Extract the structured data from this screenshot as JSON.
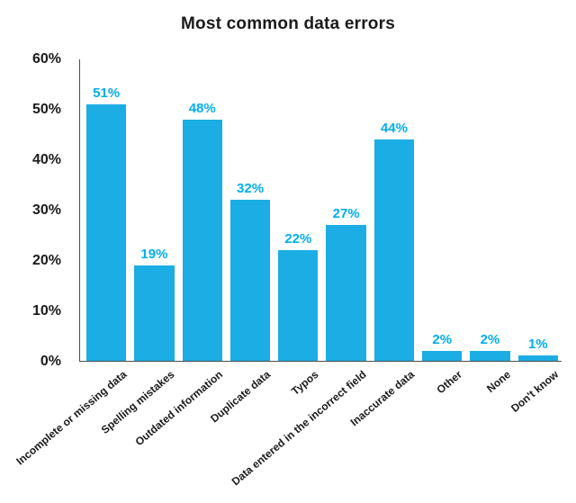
{
  "chart_data": {
    "type": "bar",
    "title": "Most common data errors",
    "categories": [
      "Incomplete or missing data",
      "Spelling mistakes",
      "Outdated information",
      "Duplicate data",
      "Typos",
      "Data entered in the incorrect field",
      "Inaccurate data",
      "Other",
      "None",
      "Don't know"
    ],
    "values": [
      51,
      19,
      48,
      32,
      22,
      27,
      44,
      2,
      2,
      1
    ],
    "value_labels": [
      "51%",
      "19%",
      "48%",
      "32%",
      "22%",
      "27%",
      "44%",
      "2%",
      "2%",
      "1%"
    ],
    "xlabel": "",
    "ylabel": "",
    "ylim": [
      0,
      60
    ],
    "yticks": [
      "0%",
      "10%",
      "20%",
      "30%",
      "40%",
      "50%",
      "60%"
    ],
    "grid": false,
    "legend": false,
    "bar_color": "#1badE4",
    "value_label_color": "#00aeef",
    "axis_color": "#4d4d4d",
    "text_color": "#1a1a1a"
  }
}
